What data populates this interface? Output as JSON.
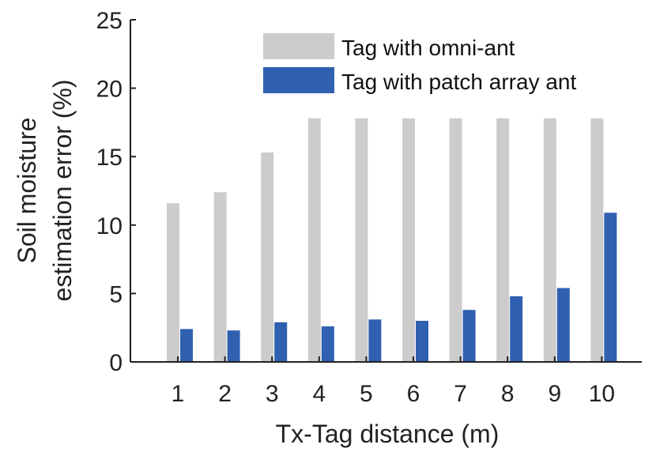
{
  "chart_data": {
    "type": "bar",
    "categories": [
      "1",
      "2",
      "3",
      "4",
      "5",
      "6",
      "7",
      "8",
      "9",
      "10"
    ],
    "series": [
      {
        "name": "Tag with omni-ant",
        "color": "#cccccc",
        "values": [
          11.6,
          12.4,
          15.3,
          17.8,
          17.8,
          17.8,
          17.8,
          17.8,
          17.8,
          17.8
        ]
      },
      {
        "name": "Tag with patch array ant",
        "color": "#3060b0",
        "values": [
          2.4,
          2.3,
          2.9,
          2.6,
          3.1,
          3.0,
          3.8,
          4.8,
          5.4,
          10.9
        ]
      }
    ],
    "xlabel": "Tx-Tag distance (m)",
    "ylabel_lines": [
      "Soil moisture",
      "estimation error (%)"
    ],
    "ylim": [
      0,
      25
    ],
    "yticks": [
      0,
      5,
      10,
      15,
      20,
      25
    ],
    "grid": false,
    "legend_position": "top-right"
  }
}
